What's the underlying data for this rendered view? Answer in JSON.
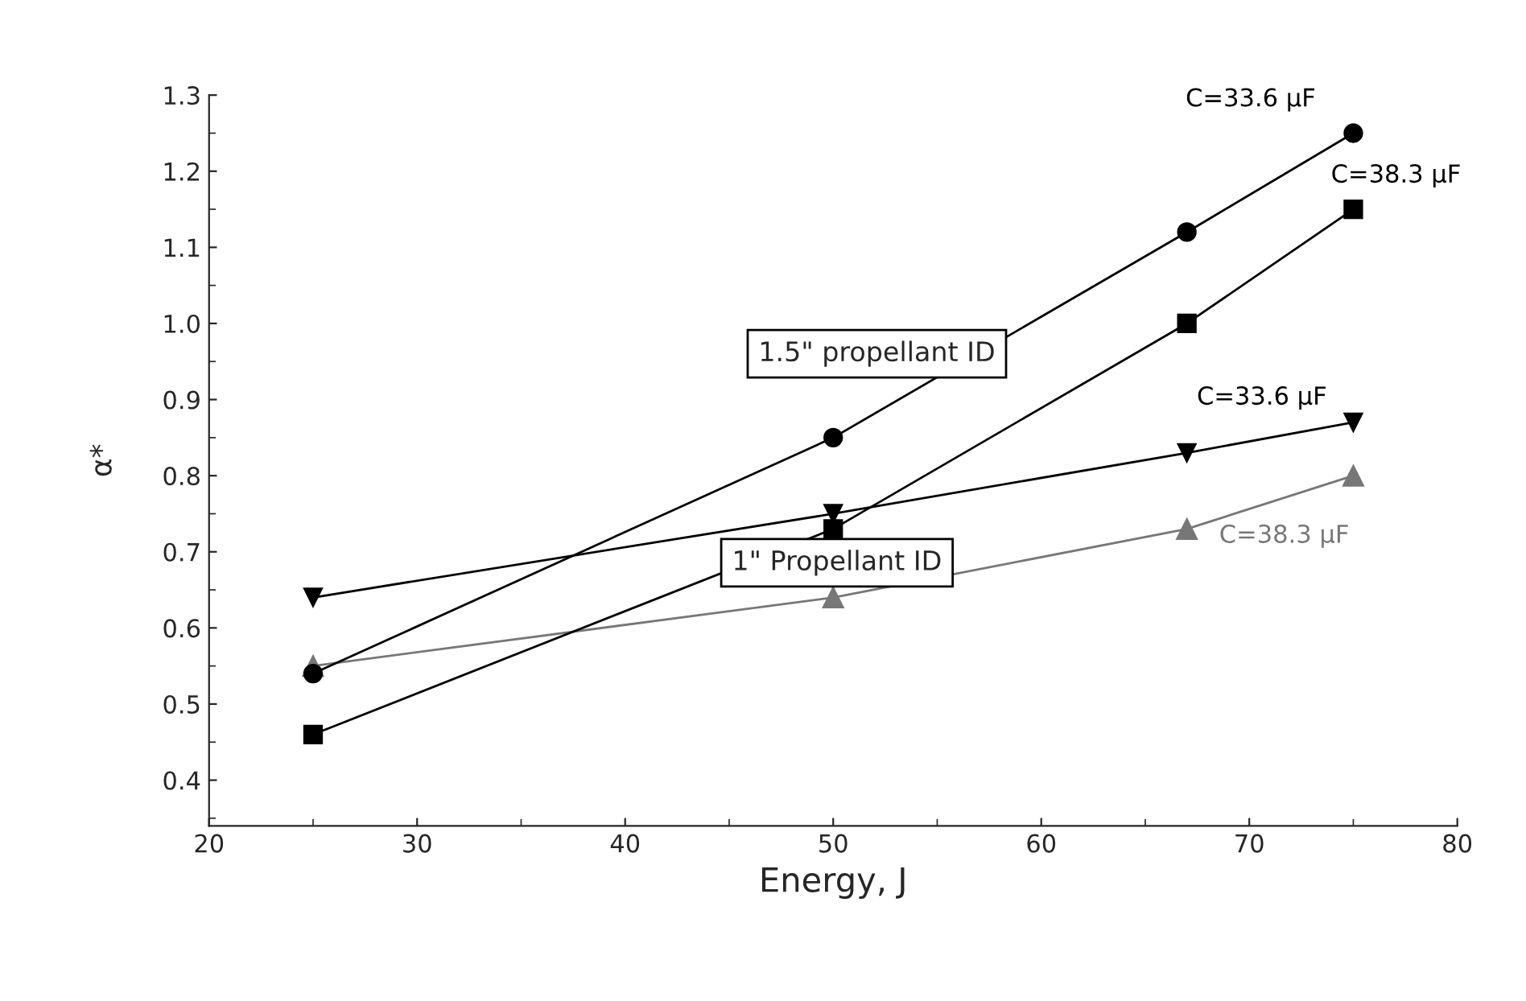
{
  "chart_data": {
    "type": "line",
    "xlabel": "Energy, J",
    "ylabel": "α*",
    "x": [
      25,
      50,
      67,
      75
    ],
    "series": [
      {
        "name": "C=33.6 µF",
        "color": "#000000",
        "marker": "circle",
        "values": [
          0.54,
          0.85,
          1.12,
          1.25
        ]
      },
      {
        "name": "C=38.3 µF",
        "color": "#000000",
        "marker": "square",
        "values": [
          0.46,
          0.73,
          1.0,
          1.15
        ]
      },
      {
        "name": "C=33.6 µF",
        "color": "#000000",
        "marker": "triangle_down",
        "values": [
          0.64,
          0.75,
          0.83,
          0.87
        ]
      },
      {
        "name": "C=38.3 µF",
        "color": "#777777",
        "marker": "triangle",
        "values": [
          0.55,
          0.64,
          0.73,
          0.8
        ]
      }
    ],
    "annotations": [
      "1.5\" propellant ID",
      "1\" Propellant ID"
    ],
    "xlim": [
      20,
      80
    ],
    "xticks": [
      20,
      30,
      40,
      50,
      60,
      70,
      80
    ],
    "ylim": [
      0.34,
      1.3
    ],
    "yticks": [
      0.4,
      0.5,
      0.6,
      0.7,
      0.8,
      0.9,
      {
        "value": 1.0,
        "label": "1.0"
      },
      1.1,
      1.2,
      1.3
    ],
    "grid": false,
    "legend": false
  }
}
